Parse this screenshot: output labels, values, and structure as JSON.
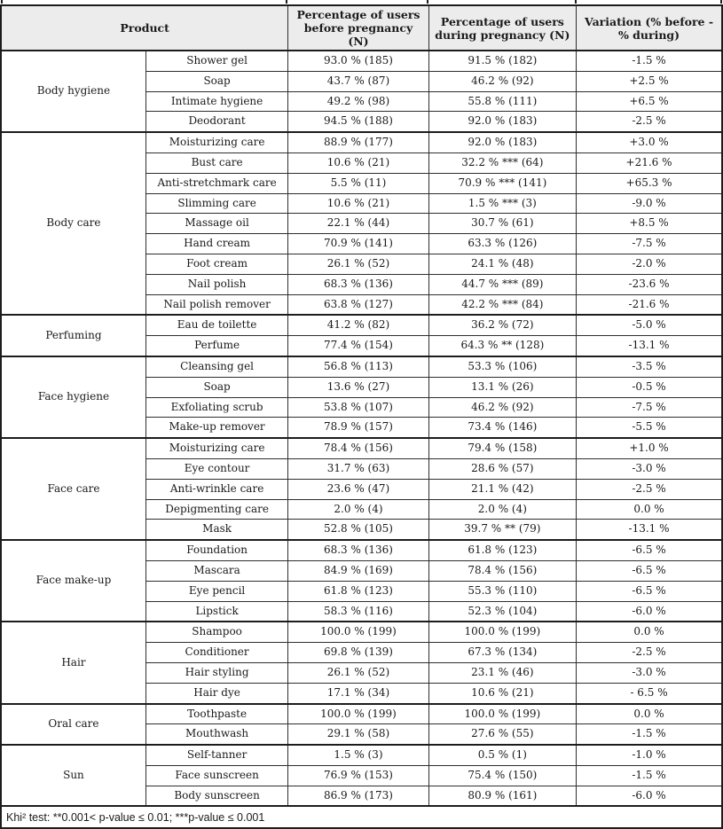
{
  "colors": {
    "header_background": "#ececec",
    "border": "#1c1c1c",
    "text": "#1a1a1a"
  },
  "table": {
    "header": {
      "product": "Product",
      "before": "Percentage of users before pregnancy (N)",
      "during": "Percentage of users during pregnancy (N)",
      "variation": "Variation (% before - % during)"
    },
    "sections": [
      {
        "category": "Body hygiene",
        "rows": [
          {
            "product": "Shower gel",
            "before": "93.0 % (185)",
            "during": "91.5 % (182)",
            "variation": "-1.5 %"
          },
          {
            "product": "Soap",
            "before": "43.7 % (87)",
            "during": "46.2 % (92)",
            "variation": "+2.5 %"
          },
          {
            "product": "Intimate hygiene",
            "before": "49.2 % (98)",
            "during": "55.8 % (111)",
            "variation": "+6.5 %"
          },
          {
            "product": "Deodorant",
            "before": "94.5 % (188)",
            "during": "92.0 % (183)",
            "variation": "-2.5 %"
          }
        ]
      },
      {
        "category": "Body care",
        "rows": [
          {
            "product": "Moisturizing care",
            "before": "88.9 % (177)",
            "during": "92.0 % (183)",
            "variation": "+3.0 %"
          },
          {
            "product": "Bust care",
            "before": "10.6 % (21)",
            "during": "32.2 % *** (64)",
            "variation": "+21.6 %"
          },
          {
            "product": "Anti-stretchmark care",
            "before": "5.5 % (11)",
            "during": "70.9 % *** (141)",
            "variation": "+65.3 %"
          },
          {
            "product": "Slimming care",
            "before": "10.6 % (21)",
            "during": "1.5 % *** (3)",
            "variation": "-9.0 %"
          },
          {
            "product": "Massage oil",
            "before": "22.1 % (44)",
            "during": "30.7 % (61)",
            "variation": "+8.5 %"
          },
          {
            "product": "Hand cream",
            "before": "70.9 % (141)",
            "during": "63.3 % (126)",
            "variation": "-7.5 %"
          },
          {
            "product": "Foot cream",
            "before": "26.1 % (52)",
            "during": "24.1 % (48)",
            "variation": "-2.0 %"
          },
          {
            "product": "Nail polish",
            "before": "68.3 % (136)",
            "during": "44.7 % *** (89)",
            "variation": "-23.6 %"
          },
          {
            "product": "Nail polish remover",
            "before": "63.8 % (127)",
            "during": "42.2 % *** (84)",
            "variation": "-21.6 %"
          }
        ]
      },
      {
        "category": "Perfuming",
        "rows": [
          {
            "product": "Eau de toilette",
            "before": "41.2 % (82)",
            "during": "36.2 % (72)",
            "variation": "-5.0 %"
          },
          {
            "product": "Perfume",
            "before": "77.4 % (154)",
            "during": "64.3 % ** (128)",
            "variation": "-13.1 %"
          }
        ]
      },
      {
        "category": "Face hygiene",
        "rows": [
          {
            "product": "Cleansing gel",
            "before": "56.8 % (113)",
            "during": "53.3 % (106)",
            "variation": "-3.5 %"
          },
          {
            "product": "Soap",
            "before": "13.6 % (27)",
            "during": "13.1 % (26)",
            "variation": "-0.5 %"
          },
          {
            "product": "Exfoliating scrub",
            "before": "53.8 % (107)",
            "during": "46.2 % (92)",
            "variation": "-7.5 %"
          },
          {
            "product": "Make-up remover",
            "before": "78.9 % (157)",
            "during": "73.4 % (146)",
            "variation": "-5.5 %"
          }
        ]
      },
      {
        "category": "Face care",
        "rows": [
          {
            "product": "Moisturizing care",
            "before": "78.4 % (156)",
            "during": "79.4 % (158)",
            "variation": "+1.0 %"
          },
          {
            "product": "Eye contour",
            "before": "31.7 % (63)",
            "during": "28.6 % (57)",
            "variation": "-3.0 %"
          },
          {
            "product": "Anti-wrinkle care",
            "before": "23.6 % (47)",
            "during": "21.1 % (42)",
            "variation": "-2.5 %"
          },
          {
            "product": "Depigmenting care",
            "before": "2.0 % (4)",
            "during": "2.0 % (4)",
            "variation": "0.0 %"
          },
          {
            "product": "Mask",
            "before": "52.8 % (105)",
            "during": "39.7 % ** (79)",
            "variation": "-13.1 %"
          }
        ]
      },
      {
        "category": "Face make-up",
        "rows": [
          {
            "product": "Foundation",
            "before": "68.3 % (136)",
            "during": "61.8 % (123)",
            "variation": "-6.5 %"
          },
          {
            "product": "Mascara",
            "before": "84.9 % (169)",
            "during": "78.4 % (156)",
            "variation": "-6.5 %"
          },
          {
            "product": "Eye pencil",
            "before": "61.8 % (123)",
            "during": "55.3 % (110)",
            "variation": "-6.5 %"
          },
          {
            "product": "Lipstick",
            "before": "58.3 % (116)",
            "during": "52.3 % (104)",
            "variation": "-6.0 %"
          }
        ]
      },
      {
        "category": "Hair",
        "rows": [
          {
            "product": "Shampoo",
            "before": "100.0 % (199)",
            "during": "100.0 % (199)",
            "variation": "0.0 %"
          },
          {
            "product": "Conditioner",
            "before": "69.8 % (139)",
            "during": "67.3 % (134)",
            "variation": "-2.5 %"
          },
          {
            "product": "Hair styling",
            "before": "26.1 % (52)",
            "during": "23.1 % (46)",
            "variation": "-3.0 %"
          },
          {
            "product": "Hair dye",
            "before": "17.1 % (34)",
            "during": "10.6 % (21)",
            "variation": "- 6.5 %"
          }
        ]
      },
      {
        "category": "Oral care",
        "rows": [
          {
            "product": "Toothpaste",
            "before": "100.0 % (199)",
            "during": "100.0 % (199)",
            "variation": "0.0 %"
          },
          {
            "product": "Mouthwash",
            "before": "29.1 % (58)",
            "during": "27.6 % (55)",
            "variation": "-1.5 %"
          }
        ]
      },
      {
        "category": "Sun",
        "rows": [
          {
            "product": "Self-tanner",
            "before": "1.5 % (3)",
            "during": "0.5 % (1)",
            "variation": "-1.0 %"
          },
          {
            "product": "Face sunscreen",
            "before": "76.9 % (153)",
            "during": "75.4 % (150)",
            "variation": "-1.5 %"
          },
          {
            "product": "Body sunscreen",
            "before": "86.9 % (173)",
            "during": "80.9 % (161)",
            "variation": "-6.0 %"
          }
        ]
      }
    ],
    "footnote": "Khi² test: **0.001< p-value ≤ 0.01; ***p-value ≤ 0.001"
  }
}
